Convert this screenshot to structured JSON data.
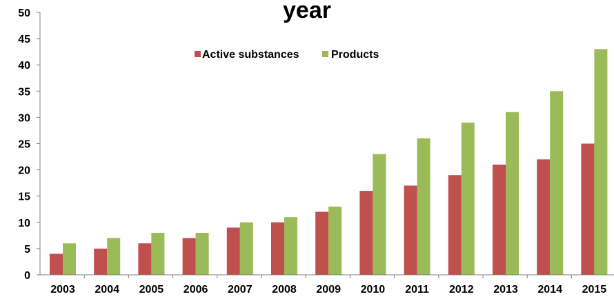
{
  "chart_data": {
    "type": "bar",
    "title": "year",
    "categories": [
      "2003",
      "2004",
      "2005",
      "2006",
      "2007",
      "2008",
      "2009",
      "2010",
      "2011",
      "2012",
      "2013",
      "2014",
      "2015"
    ],
    "series": [
      {
        "name": "Active substances",
        "color": "#c0504d",
        "values": [
          4,
          5,
          6,
          7,
          9,
          10,
          12,
          16,
          17,
          19,
          21,
          22,
          25
        ]
      },
      {
        "name": "Products",
        "color": "#9bbb59",
        "values": [
          6,
          7,
          8,
          8,
          10,
          11,
          13,
          23,
          26,
          29,
          31,
          35,
          43
        ]
      }
    ],
    "ylim": [
      0,
      50
    ],
    "yticks": [
      0,
      5,
      10,
      15,
      20,
      25,
      30,
      35,
      40,
      45,
      50
    ],
    "legend_position": "top-center",
    "grid": false
  }
}
